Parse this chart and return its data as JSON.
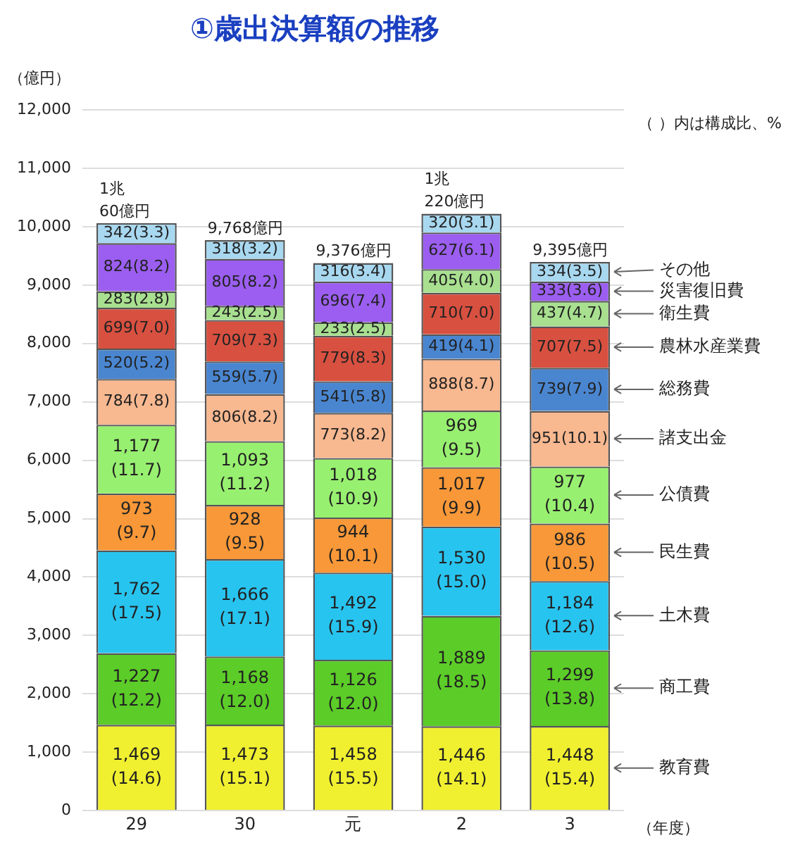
{
  "chart_data": {
    "type": "bar",
    "title": "①歳出決算額の推移",
    "ylabel": "（億円）",
    "xlabel": "（年度）",
    "annotations": [
      "（ ）内は構成比、%"
    ],
    "categories": [
      "29",
      "30",
      "元",
      "2",
      "3"
    ],
    "stacked": true,
    "grid": "y",
    "ylim": [
      0,
      12000
    ],
    "yticks": [
      0,
      {
        "value": 1000,
        "label": "1,000"
      },
      {
        "value": 2000,
        "label": "2,000"
      },
      {
        "value": 3000,
        "label": "3,000"
      },
      {
        "value": 4000,
        "label": "4,000"
      },
      {
        "value": 5000,
        "label": "5,000"
      },
      {
        "value": 6000,
        "label": "6,000"
      },
      {
        "value": 7000,
        "label": "7,000"
      },
      {
        "value": 8000,
        "label": "8,000"
      },
      {
        "value": 9000,
        "label": "9,000"
      },
      {
        "value": 10000,
        "label": "10,000"
      },
      {
        "value": 11000,
        "label": "11,000"
      },
      {
        "value": 12000,
        "label": "12,000"
      }
    ],
    "totals": [
      "1兆\n60億円",
      "9,768億円",
      "9,376億円",
      "1兆\n220億円",
      "9,395億円"
    ],
    "series": [
      {
        "name": "教育費",
        "color": "#f0f030",
        "values": [
          1469,
          1473,
          1458,
          1446,
          1448
        ],
        "value_labels": [
          "1,469\n(14.6)",
          "1,473\n(15.1)",
          "1,458\n(15.5)",
          "1,446\n(14.1)",
          "1,448\n(15.4)"
        ]
      },
      {
        "name": "商工費",
        "color": "#5ccc28",
        "values": [
          1227,
          1168,
          1126,
          1889,
          1299
        ],
        "value_labels": [
          "1,227\n(12.2)",
          "1,168\n(12.0)",
          "1,126\n(12.0)",
          "1,889\n(18.5)",
          "1,299\n(13.8)"
        ]
      },
      {
        "name": "土木費",
        "color": "#28c4f0",
        "values": [
          1762,
          1666,
          1492,
          1530,
          1184
        ],
        "value_labels": [
          "1,762\n(17.5)",
          "1,666\n(17.1)",
          "1,492\n(15.9)",
          "1,530\n(15.0)",
          "1,184\n(12.6)"
        ]
      },
      {
        "name": "民生費",
        "color": "#f89838",
        "values": [
          973,
          928,
          944,
          1017,
          986
        ],
        "value_labels": [
          "973\n(9.7)",
          "928\n(9.5)",
          "944\n(10.1)",
          "1,017\n(9.9)",
          "986\n(10.5)"
        ]
      },
      {
        "name": "公債費",
        "color": "#98f070",
        "values": [
          1177,
          1093,
          1018,
          969,
          977
        ],
        "value_labels": [
          "1,177\n(11.7)",
          "1,093\n(11.2)",
          "1,018\n(10.9)",
          "969\n(9.5)",
          "977\n(10.4)"
        ]
      },
      {
        "name": "諸支出金",
        "color": "#f8b890",
        "values": [
          784,
          806,
          773,
          888,
          951
        ],
        "value_labels": [
          "784(7.8)",
          "806(8.2)",
          "773(8.2)",
          "888(8.7)",
          "951(10.1)"
        ]
      },
      {
        "name": "総務費",
        "color": "#4a86d0",
        "values": [
          520,
          559,
          541,
          419,
          739
        ],
        "value_labels": [
          "520(5.2)",
          "559(5.7)",
          "541(5.8)",
          "419(4.1)",
          "739(7.9)"
        ]
      },
      {
        "name": "農林水産業費",
        "color": "#d85040",
        "values": [
          699,
          709,
          779,
          710,
          707
        ],
        "value_labels": [
          "699(7.0)",
          "709(7.3)",
          "779(8.3)",
          "710(7.0)",
          "707(7.5)"
        ]
      },
      {
        "name": "衛生費",
        "color": "#a8e090",
        "values": [
          283,
          243,
          233,
          405,
          437
        ],
        "value_labels": [
          "283(2.8)",
          "243(2.5)",
          "233(2.5)",
          "405(4.0)",
          "437(4.7)"
        ]
      },
      {
        "name": "災害復旧費",
        "color": "#9b5ef0",
        "values": [
          824,
          805,
          696,
          627,
          333
        ],
        "value_labels": [
          "824(8.2)",
          "805(8.2)",
          "696(7.4)",
          "627(6.1)",
          "333(3.6)"
        ]
      },
      {
        "name": "その他",
        "color": "#a8d8f0",
        "values": [
          342,
          318,
          316,
          320,
          334
        ],
        "value_labels": [
          "342(3.3)",
          "318(3.2)",
          "316(3.4)",
          "320(3.1)",
          "334(3.5)"
        ]
      }
    ]
  }
}
